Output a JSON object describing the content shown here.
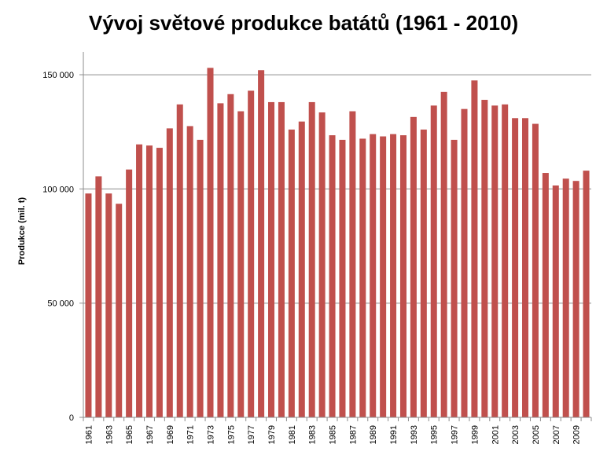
{
  "chart_data": {
    "type": "bar",
    "title": "Vývoj světové produkce batátů (1961 - 2010)",
    "xlabel": "",
    "ylabel": "Produkce (mil. t)",
    "ylim": [
      0,
      160000
    ],
    "yticks": [
      0,
      50000,
      100000,
      150000
    ],
    "ytick_labels": [
      "0",
      "50 000",
      "100 000",
      "150 000"
    ],
    "grid": "horizontal",
    "bar_color": "#c0504d",
    "categories": [
      "1961",
      "1962",
      "1963",
      "1964",
      "1965",
      "1966",
      "1967",
      "1968",
      "1969",
      "1970",
      "1971",
      "1972",
      "1973",
      "1974",
      "1975",
      "1976",
      "1977",
      "1978",
      "1979",
      "1980",
      "1981",
      "1982",
      "1983",
      "1984",
      "1985",
      "1986",
      "1987",
      "1988",
      "1989",
      "1990",
      "1991",
      "1992",
      "1993",
      "1994",
      "1995",
      "1996",
      "1997",
      "1998",
      "1999",
      "2000",
      "2001",
      "2002",
      "2003",
      "2004",
      "2005",
      "2006",
      "2007",
      "2008",
      "2009",
      "2010"
    ],
    "xtick_labels": [
      "1961",
      "1963",
      "1965",
      "1967",
      "1969",
      "1971",
      "1973",
      "1975",
      "1977",
      "1979",
      "1981",
      "1983",
      "1985",
      "1987",
      "1989",
      "1991",
      "1993",
      "1995",
      "1997",
      "1999",
      "2001",
      "2003",
      "2005",
      "2007",
      "2009"
    ],
    "values": [
      98000,
      105500,
      98000,
      93500,
      108500,
      119500,
      119000,
      118000,
      126500,
      137000,
      127500,
      121500,
      153000,
      137500,
      141500,
      134000,
      143000,
      152000,
      138000,
      138000,
      126000,
      129500,
      138000,
      133500,
      123500,
      121500,
      134000,
      122000,
      124000,
      123000,
      124000,
      123500,
      131500,
      126000,
      136500,
      142500,
      121500,
      135000,
      147500,
      139000,
      136500,
      137000,
      131000,
      131000,
      128500,
      107000,
      101500,
      104500,
      103500,
      108000
    ]
  }
}
